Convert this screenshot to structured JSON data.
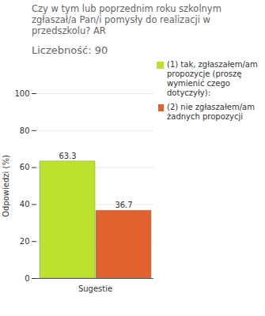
{
  "chart_data": {
    "type": "bar",
    "title": "Czy w tym lub poprzednim roku szkolnym zgłaszał/a Pan/i pomysły do realizacji w przedszkolu? AR",
    "subtitle": "Liczebność: 90",
    "y_label": "Odpowiedzi (%)",
    "categories": [
      "Sugestie"
    ],
    "series": [
      {
        "name": "(1) tak, zgłaszałem/am propozycje (proszę wymienić czego dotyczyły):",
        "color": "#bde22e",
        "values": [
          63.3
        ]
      },
      {
        "name": "(2) nie zgłaszałem/am żadnych propozycji",
        "color": "#e0622e",
        "values": [
          36.7
        ]
      }
    ],
    "ylim": [
      0,
      100
    ],
    "yticks": [
      0,
      20,
      40,
      60,
      80,
      100
    ],
    "grid": true,
    "data_labels": true,
    "legend": "top-right"
  }
}
